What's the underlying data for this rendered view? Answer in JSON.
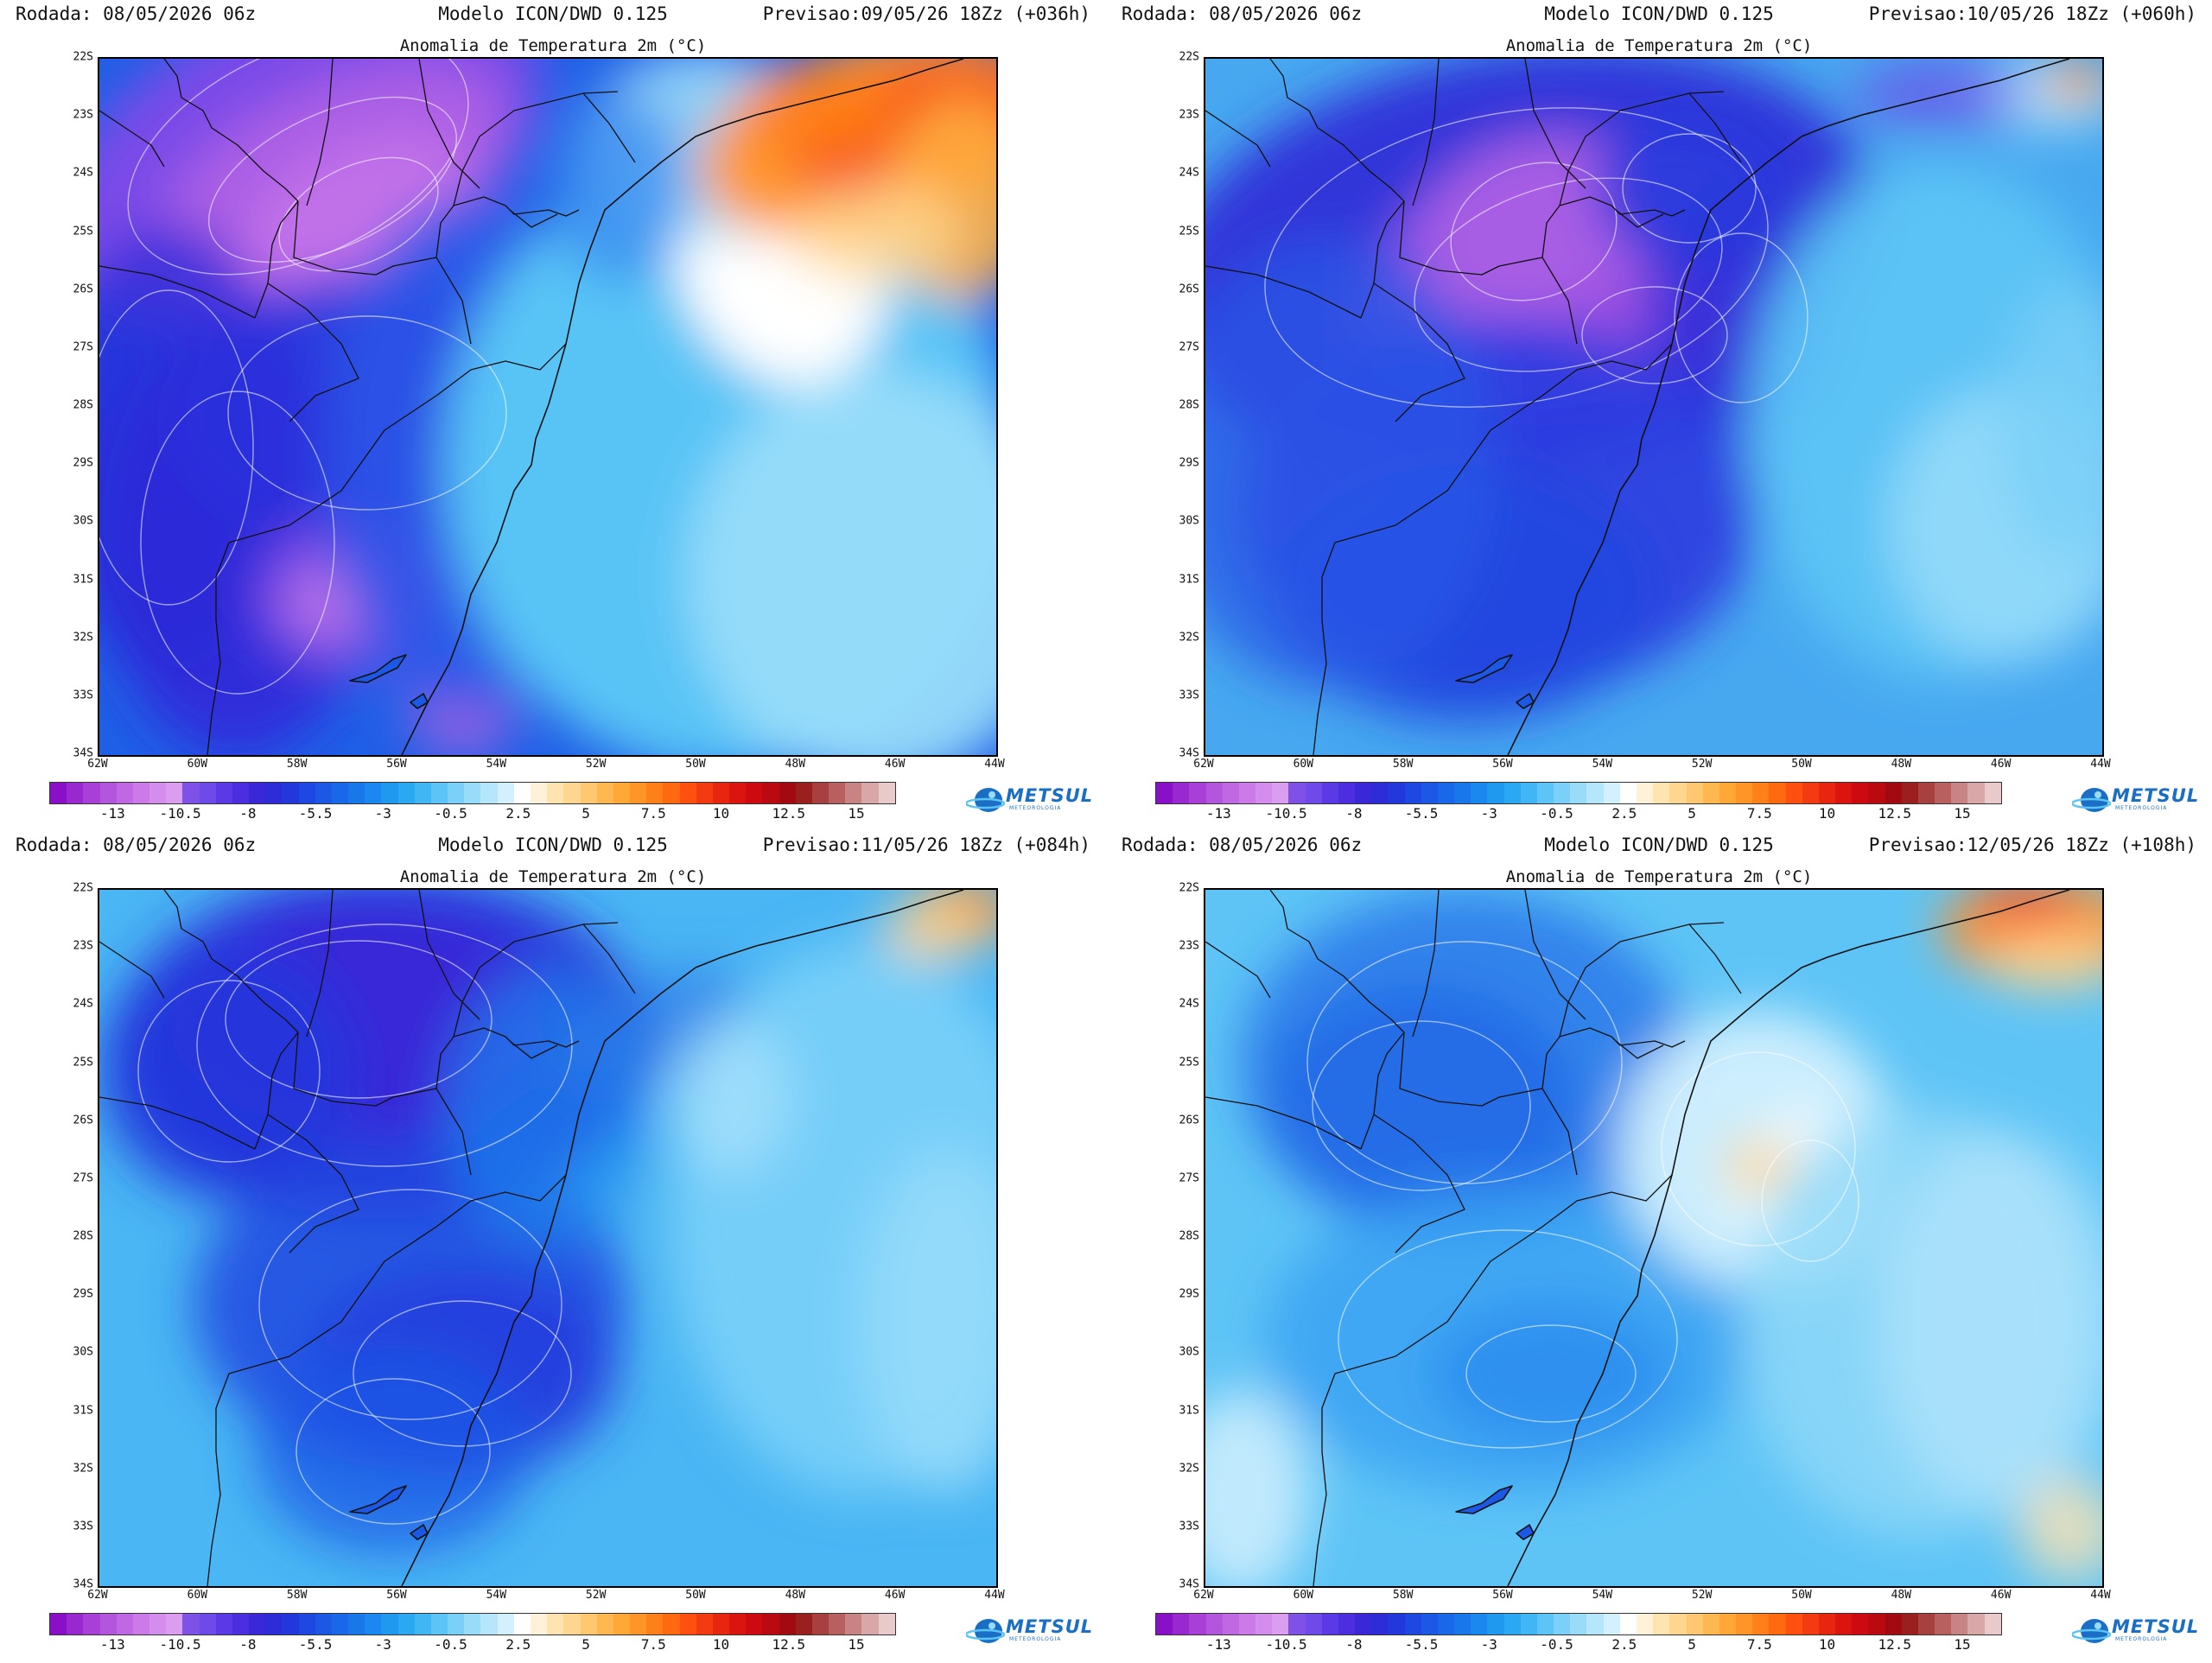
{
  "panels": [
    {
      "run": "Rodada: 08/05/2026 06z",
      "model": "Modelo ICON/DWD 0.125",
      "forecast": "Previsao:09/05/26 18Zz (+036h)",
      "title": "Anomalia de Temperatura 2m (°C)"
    },
    {
      "run": "Rodada: 08/05/2026 06z",
      "model": "Modelo ICON/DWD 0.125",
      "forecast": "Previsao:10/05/26 18Zz (+060h)",
      "title": "Anomalia de Temperatura 2m (°C)"
    },
    {
      "run": "Rodada: 08/05/2026 06z",
      "model": "Modelo ICON/DWD 0.125",
      "forecast": "Previsao:11/05/26 18Zz (+084h)",
      "title": "Anomalia de Temperatura 2m (°C)"
    },
    {
      "run": "Rodada: 08/05/2026 06z",
      "model": "Modelo ICON/DWD 0.125",
      "forecast": "Previsao:12/05/26 18Zz (+108h)",
      "title": "Anomalia de Temperatura 2m (°C)"
    }
  ],
  "lat_labels": [
    "22S",
    "23S",
    "24S",
    "25S",
    "26S",
    "27S",
    "28S",
    "29S",
    "30S",
    "31S",
    "32S",
    "33S",
    "34S"
  ],
  "lon_labels": [
    "62W",
    "60W",
    "58W",
    "56W",
    "54W",
    "52W",
    "50W",
    "48W",
    "46W",
    "44W"
  ],
  "colorbar": {
    "tick_labels": [
      "-13",
      "-10.5",
      "-8",
      "-5.5",
      "-3",
      "-0.5",
      "2.5",
      "5",
      "7.5",
      "10",
      "12.5",
      "15"
    ],
    "colors": [
      "#8a10c8",
      "#9a28d0",
      "#a840d8",
      "#b455de",
      "#c068e4",
      "#cb7ae8",
      "#d48ced",
      "#db9df0",
      "#7e52e6",
      "#6e4ae8",
      "#5b3ae6",
      "#4a2ee0",
      "#3a28d8",
      "#2c2cd8",
      "#2238dc",
      "#1e48e2",
      "#1c58e6",
      "#1a68ea",
      "#1878ea",
      "#1a88ee",
      "#1f98f0",
      "#2aa8f2",
      "#40b6f4",
      "#5cc4f6",
      "#7ad0f8",
      "#98dcfa",
      "#b6e6fc",
      "#d2f0fe",
      "#ffffff",
      "#fff2d8",
      "#ffe4b0",
      "#ffd690",
      "#ffc870",
      "#ffb850",
      "#ffa838",
      "#ff9428",
      "#ff8018",
      "#ff6a10",
      "#ff5010",
      "#f43a10",
      "#e82610",
      "#dc1410",
      "#cc0a10",
      "#b80a10",
      "#a00a10",
      "#9a2020",
      "#a84040",
      "#b86060",
      "#c88484",
      "#d8a8a8",
      "#e8caca"
    ]
  },
  "logo": {
    "text": "METSUL",
    "sub": "METEOROLOGIA"
  }
}
